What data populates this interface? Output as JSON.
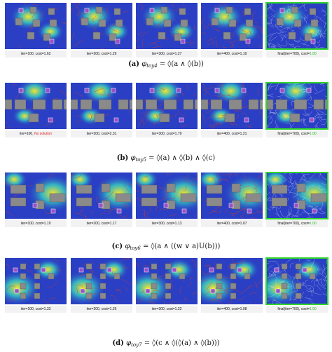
{
  "rows": [
    {
      "tag": "(a)",
      "phi_symbol": "φ",
      "phi_sub": "toy4",
      "formula": "= ◊(a ∧ ◊(b))",
      "bg": "a",
      "panels": [
        {
          "iter_text": "iter=100, ",
          "cost_text": "cost=1.62",
          "cost_color": "normal"
        },
        {
          "iter_text": "iter=200, ",
          "cost_text": "cost=1.29",
          "cost_color": "normal"
        },
        {
          "iter_text": "iter=300, ",
          "cost_text": "cost=1.27",
          "cost_color": "normal"
        },
        {
          "iter_text": "iter=400, ",
          "cost_text": "cost=1.10",
          "cost_color": "normal"
        },
        {
          "iter_text": "final(iter=700), cost=",
          "cost_text": "1.00",
          "cost_color": "green",
          "final": true
        }
      ]
    },
    {
      "tag": "(b)",
      "phi_symbol": "φ",
      "phi_sub": "toy5",
      "formula": "= ◊(a) ∧ ◊(b) ∧ ◊(c)",
      "bg": "b",
      "panels": [
        {
          "iter_text": "iter=100, ",
          "cost_text": "No solution",
          "cost_color": "red"
        },
        {
          "iter_text": "iter=200, ",
          "cost_text": "cost=2.31",
          "cost_color": "normal"
        },
        {
          "iter_text": "iter=300, ",
          "cost_text": "cost=1.79",
          "cost_color": "normal"
        },
        {
          "iter_text": "iter=400, ",
          "cost_text": "cost=1.21",
          "cost_color": "normal"
        },
        {
          "iter_text": "final(iter=700), cost=",
          "cost_text": "1.00",
          "cost_color": "green",
          "final": true
        }
      ]
    },
    {
      "tag": "(c)",
      "phi_symbol": "φ",
      "phi_sub": "toy6",
      "formula": "= ◊(a ∧ ((w ∨ a)U(b)))",
      "bg": "c",
      "panels": [
        {
          "iter_text": "iter=100, ",
          "cost_text": "cost=1.19",
          "cost_color": "normal"
        },
        {
          "iter_text": "iter=200, ",
          "cost_text": "cost=1.17",
          "cost_color": "normal"
        },
        {
          "iter_text": "iter=300, ",
          "cost_text": "cost=1.13",
          "cost_color": "normal"
        },
        {
          "iter_text": "iter=400, ",
          "cost_text": "cost=1.07",
          "cost_color": "normal"
        },
        {
          "iter_text": "final(iter=700), cost=",
          "cost_text": "1.00",
          "cost_color": "green",
          "final": true
        }
      ]
    },
    {
      "tag": "(d)",
      "phi_symbol": "φ",
      "phi_sub": "toy7",
      "formula": "= ◊(c ∧ ◊(◊(a) ∧ ◊(b)))",
      "bg": "d",
      "panels": [
        {
          "iter_text": "iter=100, ",
          "cost_text": "cost=1.33",
          "cost_color": "normal"
        },
        {
          "iter_text": "iter=200, ",
          "cost_text": "cost=1.26",
          "cost_color": "normal"
        },
        {
          "iter_text": "iter=300, ",
          "cost_text": "cost=1.22",
          "cost_color": "normal"
        },
        {
          "iter_text": "iter=400, ",
          "cost_text": "cost=1.08",
          "cost_color": "normal"
        },
        {
          "iter_text": "final(iter=700), cost=",
          "cost_text": "1.00",
          "cost_color": "green",
          "final": true
        }
      ]
    }
  ],
  "colors": {
    "heat_high": "#f5e52a",
    "heat_mid": "#36c9c3",
    "heat_low": "#2a3fc4",
    "obstacle": "#8a8a8a",
    "region": "#9a4fc8",
    "tree": "#d23a2a",
    "final_tree": "#dce8f8",
    "final_border": "#31d62b",
    "no_solution": "#e01e1e",
    "final_cost": "#1fbf1f"
  }
}
